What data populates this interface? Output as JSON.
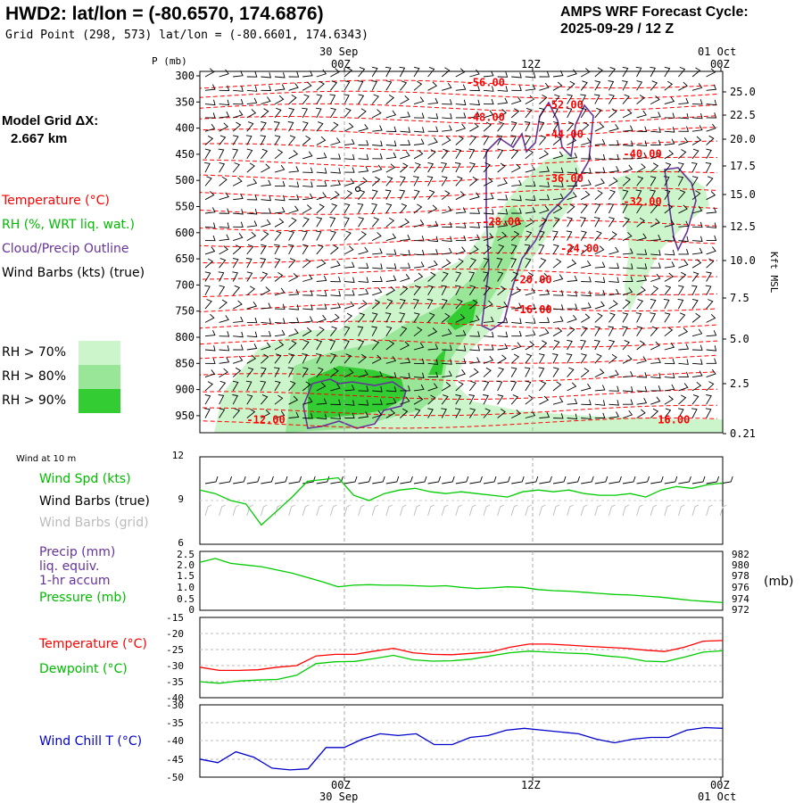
{
  "header": {
    "title": "HWD2:  lat/lon = (-80.6570, 174.6876)",
    "grid_point": "Grid Point (298, 573) lat/lon = (-80.6601, 174.6343)",
    "cycle_line1": "AMPS WRF Forecast Cycle:",
    "cycle_line2": "2025-09-29 / 12  Z"
  },
  "side": {
    "model_grid_label": "Model Grid ΔX:",
    "model_grid_value": "2.667 km",
    "legend_temperature": "Temperature (°C)",
    "legend_rh": "RH (%, WRT liq. wat.)",
    "legend_cloud": "Cloud/Precip Outline",
    "legend_wind": "Wind Barbs (kts) (true)",
    "rh70": "RH > 70%",
    "rh80": "RH > 80%",
    "rh90": "RH > 90%",
    "wind10m": "Wind at 10 m",
    "wind_spd": "Wind Spd (kts)",
    "wind_barbs_true": "Wind Barbs (true)",
    "wind_barbs_grid": "Wind Barbs (grid)",
    "precip1": "Precip (mm)",
    "precip2": "liq. equiv.",
    "precip3": "1-hr accum",
    "pressure": "Pressure (mb)",
    "temperature": "Temperature (°C)",
    "dewpoint": "Dewpoint (°C)",
    "windchill": "Wind Chill T (°C)",
    "mb_unit": "(mb)",
    "kft_msl": "Kft MSL",
    "p_mb": "P (mb)"
  },
  "colors": {
    "temperature": "#ff0000",
    "rh": "#00cc00",
    "cloud": "#663399",
    "wind": "#000000",
    "grid_wind": "#bbbbbb",
    "windchill": "#0000cc",
    "rh70": "#ccf5cc",
    "rh80": "#99e699",
    "rh90": "#33cc33"
  },
  "top_axis": {
    "labels": [
      "00Z",
      "12Z",
      "00Z"
    ],
    "date_labels": [
      "30 Sep",
      "01 Oct"
    ]
  },
  "bottom_axis": {
    "labels": [
      "00Z",
      "12Z",
      "00Z"
    ],
    "date_labels": [
      "30 Sep",
      "01 Oct"
    ]
  },
  "chart_data": [
    {
      "type": "heatmap",
      "name": "sounding-cross-section",
      "pressure_ticks": [
        "300",
        "350",
        "400",
        "450",
        "500",
        "550",
        "600",
        "650",
        "700",
        "750",
        "800",
        "850",
        "900",
        "950"
      ],
      "height_ticks": [
        "25.0",
        "22.5",
        "20.0",
        "17.5",
        "15.0",
        "12.5",
        "10.0",
        "7.5",
        "5.0",
        "2.5",
        "0.21"
      ],
      "temperature_contours": [
        {
          "label": "-56.00",
          "t": 9,
          "p": 328
        },
        {
          "label": "-52.00",
          "t": 14,
          "p": 370
        },
        {
          "label": "-48.00",
          "t": 9,
          "p": 393
        },
        {
          "label": "-44.00",
          "t": 14,
          "p": 425
        },
        {
          "label": "-40.00",
          "t": 19,
          "p": 462
        },
        {
          "label": "-36.00",
          "t": 14,
          "p": 508
        },
        {
          "label": "-32.00",
          "t": 19,
          "p": 552
        },
        {
          "label": "-28.00",
          "t": 10,
          "p": 590
        },
        {
          "label": "-24.00",
          "t": 15,
          "p": 640
        },
        {
          "label": "-20.00",
          "t": 12,
          "p": 699
        },
        {
          "label": "-16.00",
          "t": 12,
          "p": 755
        },
        {
          "label": "-12.00",
          "t": -5,
          "p": 962
        },
        {
          "label": "16.00",
          "t": 21,
          "p": 962
        }
      ]
    },
    {
      "type": "line",
      "name": "wind-speed-10m",
      "yticks": [
        "12",
        "9",
        "6"
      ],
      "ylim": [
        6,
        12
      ],
      "series": [
        {
          "name": "Wind Spd (kts)",
          "values": [
            9.6,
            9.4,
            9.0,
            8.8,
            7.6,
            8.4,
            9.2,
            10.1,
            10.2,
            10.3,
            9.3,
            9.0,
            9.4,
            9.6,
            9.7,
            9.5,
            9.4,
            9.5,
            9.4,
            9.3,
            9.2,
            9.5,
            9.6,
            9.5,
            9.6,
            9.4,
            9.3,
            9.3,
            9.4,
            9.2,
            9.6,
            9.8,
            9.7,
            9.9,
            10.0
          ]
        }
      ]
    },
    {
      "type": "line",
      "name": "precip-pressure",
      "precip_ticks": [
        "2.5",
        "2.0",
        "1.5",
        "1.0",
        "0.5",
        "0"
      ],
      "pressure_ticks": [
        "982",
        "980",
        "978",
        "976",
        "974",
        "972"
      ],
      "series": [
        {
          "name": "Pressure (mb)",
          "values": [
            980.8,
            981.5,
            980.6,
            980.3,
            980.0,
            979.4,
            978.8,
            978.0,
            977.2,
            976.3,
            976.6,
            976.7,
            976.6,
            976.6,
            976.5,
            976.4,
            976.5,
            976.2,
            976.0,
            976.1,
            976.3,
            976.2,
            975.8,
            975.6,
            975.5,
            975.3,
            975.1,
            974.9,
            974.8,
            974.6,
            974.4,
            974.1,
            973.8,
            973.6,
            973.4
          ]
        }
      ]
    },
    {
      "type": "line",
      "name": "temperature-dewpoint",
      "yticks": [
        "-15",
        "-20",
        "-25",
        "-30",
        "-35",
        "-40"
      ],
      "ylim": [
        -40,
        -15
      ],
      "series": [
        {
          "name": "Temperature (°C)",
          "values": [
            -30.5,
            -31.5,
            -31.5,
            -31.3,
            -30.5,
            -30.0,
            -27.0,
            -26.5,
            -26.5,
            -25.5,
            -24.6,
            -26.0,
            -26.5,
            -26.6,
            -26.2,
            -25.8,
            -24.3,
            -23.3,
            -23.3,
            -23.6,
            -24.0,
            -24.3,
            -24.6,
            -25.2,
            -25.6,
            -24.3,
            -22.4,
            -22.2
          ]
        },
        {
          "name": "Dewpoint (°C)",
          "values": [
            -35.0,
            -35.5,
            -34.8,
            -34.5,
            -34.3,
            -33.0,
            -29.4,
            -28.8,
            -28.7,
            -27.8,
            -26.8,
            -28.2,
            -28.6,
            -28.5,
            -28.0,
            -27.0,
            -26.0,
            -25.5,
            -25.8,
            -26.1,
            -26.3,
            -27.0,
            -27.5,
            -28.6,
            -28.8,
            -27.4,
            -25.8,
            -25.4
          ]
        }
      ]
    },
    {
      "type": "line",
      "name": "wind-chill",
      "yticks": [
        "-30",
        "-35",
        "-40",
        "-45",
        "-50"
      ],
      "ylim": [
        -50,
        -30
      ],
      "series": [
        {
          "name": "Wind Chill T (°C)",
          "values": [
            -45.0,
            -46.0,
            -43.0,
            -44.5,
            -47.5,
            -48.0,
            -47.7,
            -41.8,
            -41.8,
            -39.5,
            -38.0,
            -38.5,
            -38.0,
            -41.0,
            -41.0,
            -39.0,
            -38.5,
            -37.0,
            -36.5,
            -37.0,
            -37.5,
            -38.0,
            -39.5,
            -40.5,
            -39.5,
            -39.0,
            -39.0,
            -37.0,
            -36.3,
            -36.5
          ]
        }
      ]
    }
  ]
}
